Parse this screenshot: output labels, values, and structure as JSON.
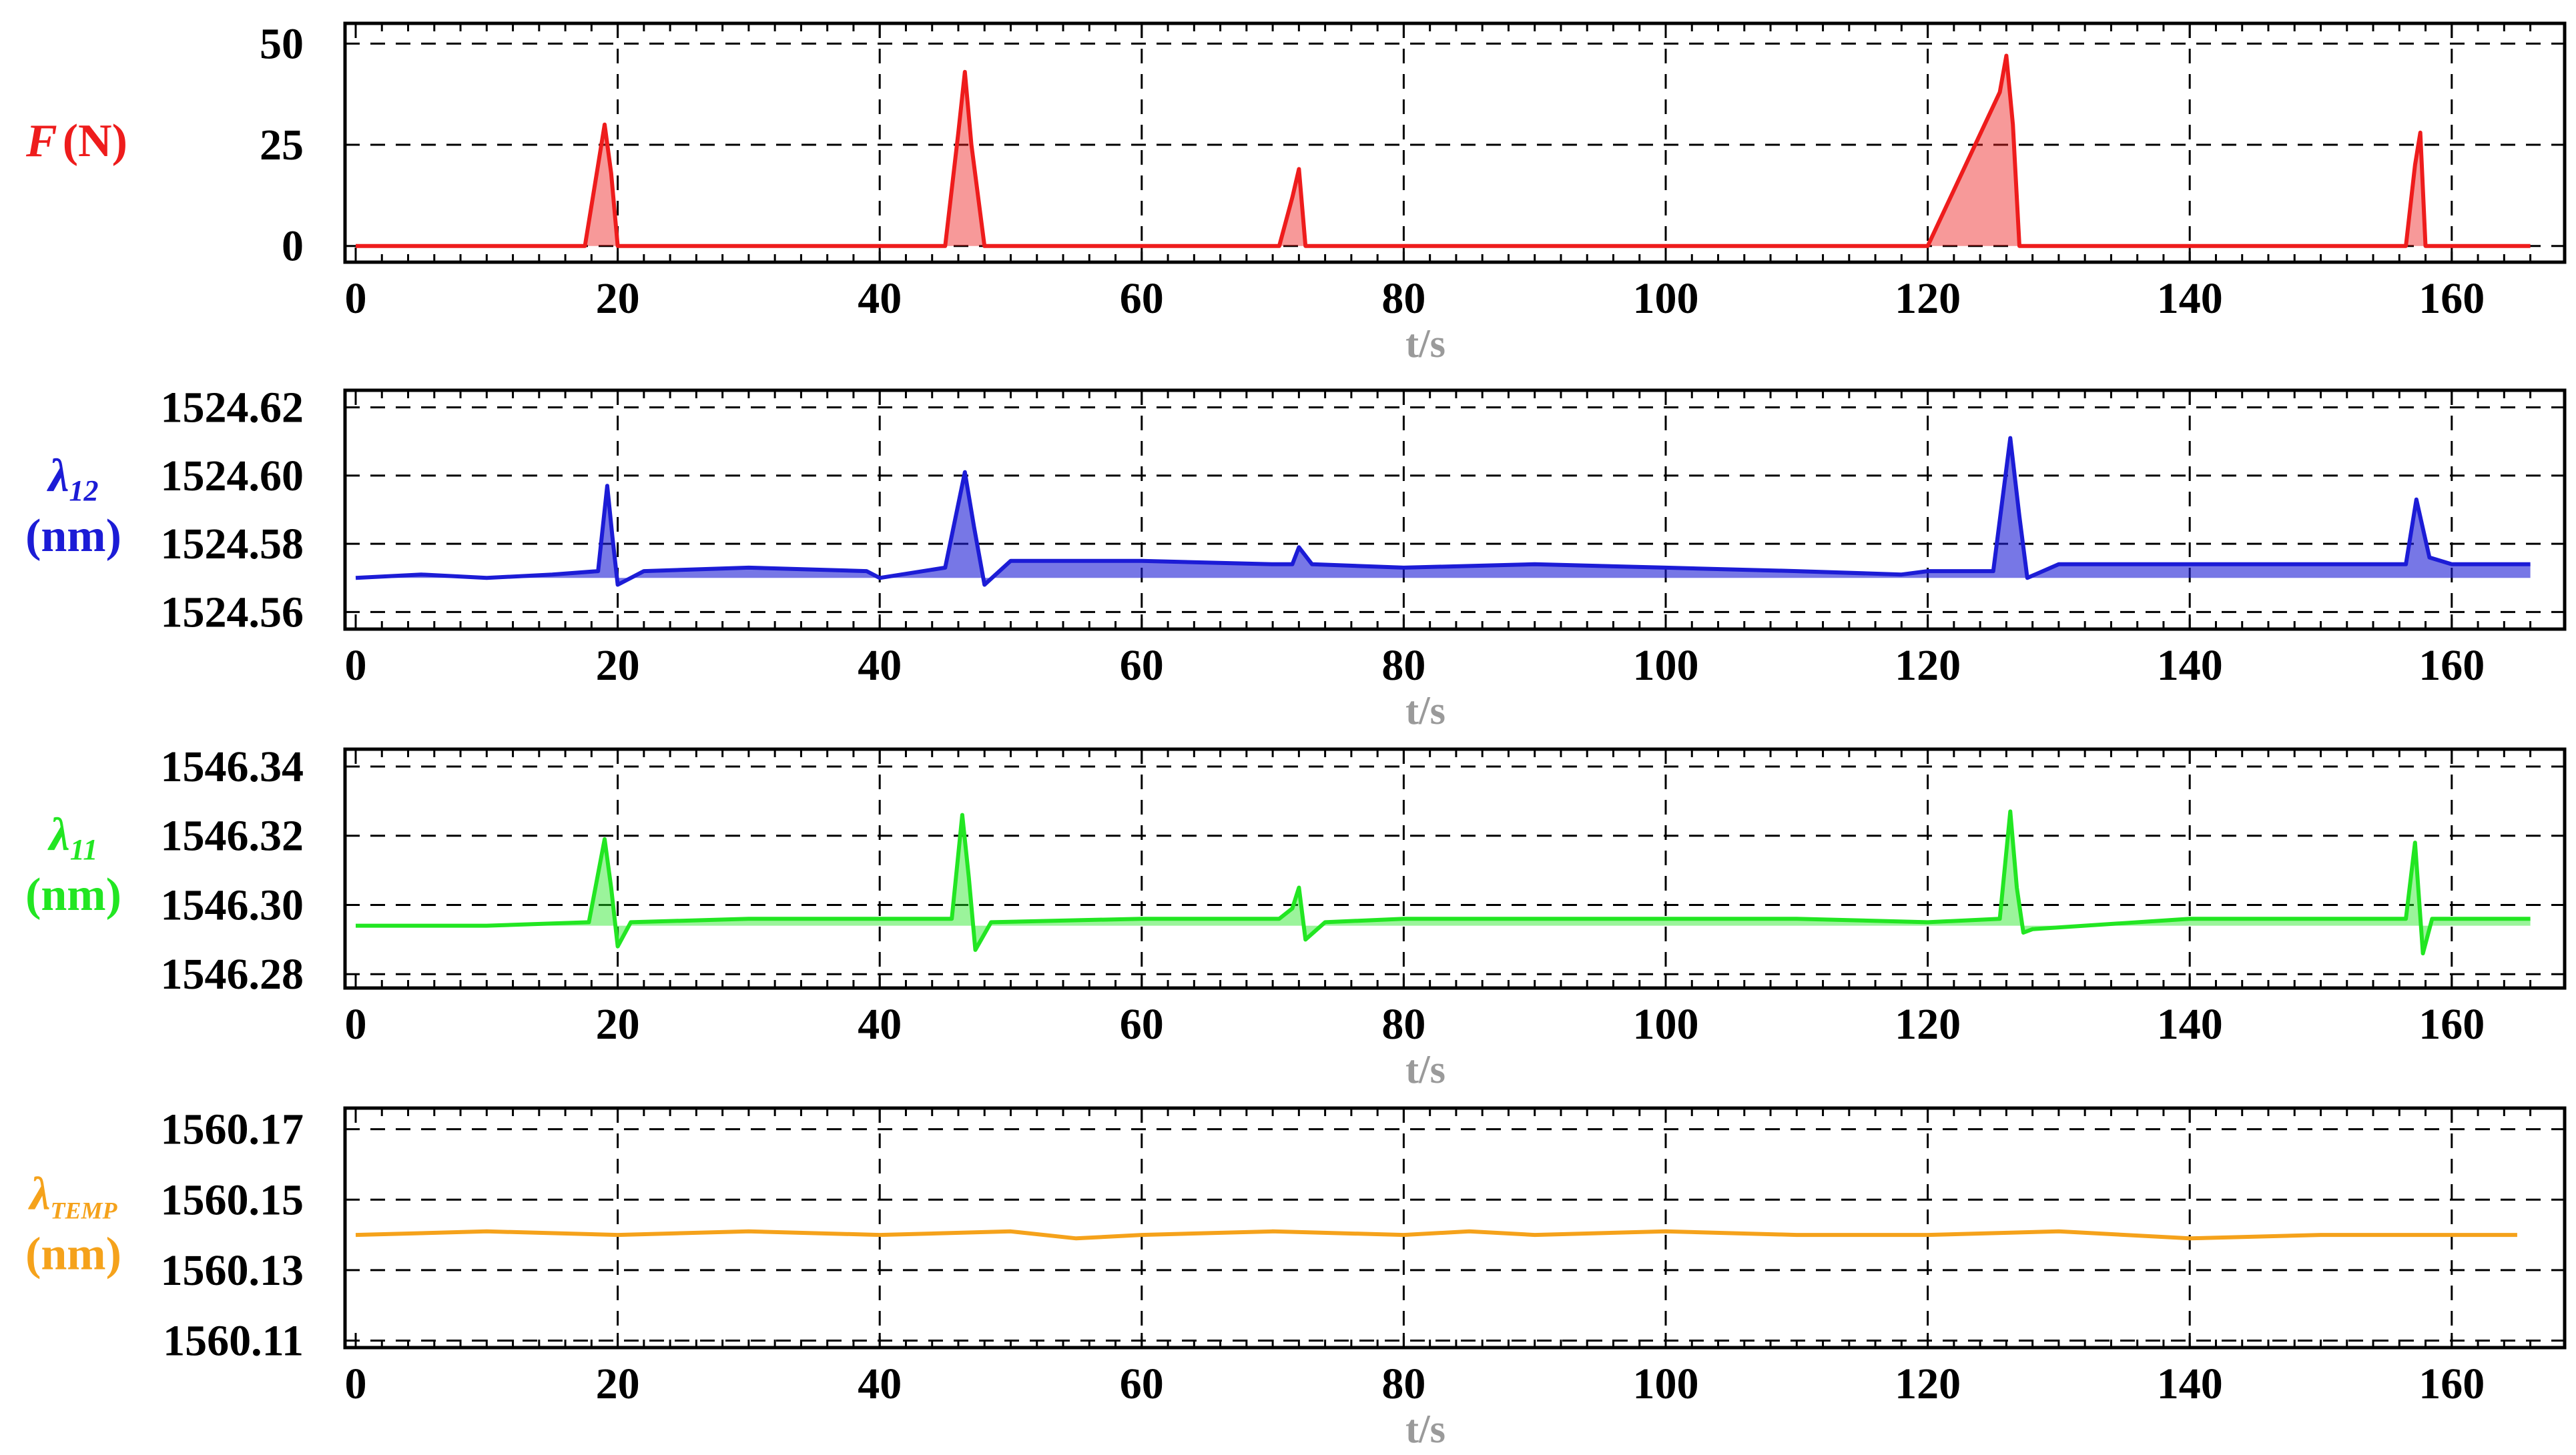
{
  "chart_data": [
    {
      "type": "area",
      "ylabel_main": "F",
      "ylabel_unit": "(N)",
      "ylabel_sub": "",
      "color": "#ee1c1c",
      "fill_opacity": 0.45,
      "xlabel": "t/s",
      "xlim": [
        0,
        166
      ],
      "ylim": [
        -4,
        55
      ],
      "xticks": [
        "0",
        "20",
        "40",
        "60",
        "80",
        "100",
        "120",
        "140",
        "160"
      ],
      "yticks": [
        {
          "v": 0,
          "label": "0"
        },
        {
          "v": 25,
          "label": "25"
        },
        {
          "v": 50,
          "label": "50"
        }
      ],
      "grid": true,
      "series": [
        {
          "x": [
            0,
            10,
            17.5,
            18.5,
            19,
            19.5,
            20,
            30,
            45,
            46,
            46.5,
            47,
            48,
            60,
            70.5,
            71.5,
            72,
            72.5,
            80,
            100,
            120,
            125.5,
            126,
            126.5,
            127,
            140,
            156.5,
            157.2,
            157.6,
            158,
            166
          ],
          "y": [
            0,
            0,
            0,
            20,
            30,
            18,
            0,
            0,
            0,
            28,
            43,
            25,
            0,
            0,
            0,
            12,
            19,
            0,
            0,
            0,
            0,
            38,
            47,
            30,
            0,
            0,
            0,
            20,
            28,
            0,
            0
          ]
        }
      ]
    },
    {
      "type": "area",
      "ylabel_main": "λ",
      "ylabel_sub": "12",
      "ylabel_unit": "(nm)",
      "color": "#1c1cd6",
      "fill_opacity": 0.6,
      "xlabel": "t/s",
      "xlim": [
        0,
        166
      ],
      "ylim": [
        1524.555,
        1524.625
      ],
      "xticks": [
        "0",
        "20",
        "40",
        "60",
        "80",
        "100",
        "120",
        "140",
        "160"
      ],
      "yticks": [
        {
          "v": 1524.56,
          "label": "1524.56"
        },
        {
          "v": 1524.58,
          "label": "1524.58"
        },
        {
          "v": 1524.6,
          "label": "1524.60"
        },
        {
          "v": 1524.62,
          "label": "1524.62"
        }
      ],
      "grid": true,
      "series": [
        {
          "x": [
            0,
            5,
            10,
            15,
            18.5,
            19.2,
            19.6,
            20,
            22,
            30,
            39,
            40,
            45,
            46.5,
            47.2,
            48,
            50,
            60,
            70,
            71.5,
            72,
            73,
            80,
            90,
            100,
            110,
            118,
            120,
            125,
            126.3,
            127,
            127.6,
            130,
            140,
            150,
            156.5,
            157.3,
            158.3,
            160,
            166
          ],
          "y": [
            1524.57,
            1524.571,
            1524.57,
            1524.571,
            1524.572,
            1524.597,
            1524.582,
            1524.568,
            1524.572,
            1524.573,
            1524.572,
            1524.57,
            1524.573,
            1524.601,
            1524.585,
            1524.568,
            1524.575,
            1524.575,
            1524.574,
            1524.574,
            1524.579,
            1524.574,
            1524.573,
            1524.574,
            1524.573,
            1524.572,
            1524.571,
            1524.572,
            1524.572,
            1524.611,
            1524.588,
            1524.57,
            1524.574,
            1524.574,
            1524.574,
            1524.574,
            1524.593,
            1524.576,
            1524.574,
            1524.574
          ]
        }
      ]
    },
    {
      "type": "area",
      "ylabel_main": "λ",
      "ylabel_sub": "11",
      "ylabel_unit": "(nm)",
      "color": "#22e622",
      "fill_opacity": 0.45,
      "xlabel": "t/s",
      "xlim": [
        0,
        166
      ],
      "ylim": [
        1546.276,
        1546.345
      ],
      "xticks": [
        "0",
        "20",
        "40",
        "60",
        "80",
        "100",
        "120",
        "140",
        "160"
      ],
      "yticks": [
        {
          "v": 1546.28,
          "label": "1546.28"
        },
        {
          "v": 1546.3,
          "label": "1546.30"
        },
        {
          "v": 1546.32,
          "label": "1546.32"
        },
        {
          "v": 1546.34,
          "label": "1546.34"
        }
      ],
      "grid": true,
      "series": [
        {
          "x": [
            0,
            5,
            10,
            17.8,
            19,
            19.5,
            20,
            21,
            30,
            40,
            45.5,
            46.3,
            46.8,
            47.3,
            48.5,
            60,
            70.5,
            71.5,
            72,
            72.5,
            74,
            80,
            90,
            100,
            110,
            120,
            125.5,
            126.3,
            126.8,
            127.3,
            128,
            140,
            150,
            156.5,
            157.2,
            157.8,
            158.5,
            160,
            166
          ],
          "y": [
            1546.294,
            1546.294,
            1546.294,
            1546.295,
            1546.319,
            1546.305,
            1546.288,
            1546.295,
            1546.296,
            1546.296,
            1546.296,
            1546.326,
            1546.308,
            1546.287,
            1546.295,
            1546.296,
            1546.296,
            1546.299,
            1546.305,
            1546.29,
            1546.295,
            1546.296,
            1546.296,
            1546.296,
            1546.296,
            1546.295,
            1546.296,
            1546.327,
            1546.305,
            1546.292,
            1546.293,
            1546.296,
            1546.296,
            1546.296,
            1546.318,
            1546.286,
            1546.296,
            1546.296,
            1546.296
          ]
        }
      ]
    },
    {
      "type": "line",
      "ylabel_main": "λ",
      "ylabel_sub": "TEMP",
      "ylabel_unit": "(nm)",
      "color": "#f5a21b",
      "fill_opacity": 0,
      "xlabel": "t/s",
      "xlim": [
        0,
        166
      ],
      "ylim": [
        1560.108,
        1560.176
      ],
      "xticks": [
        "0",
        "20",
        "40",
        "60",
        "80",
        "100",
        "120",
        "140",
        "160"
      ],
      "yticks": [
        {
          "v": 1560.11,
          "label": "1560.11"
        },
        {
          "v": 1560.13,
          "label": "1560.13"
        },
        {
          "v": 1560.15,
          "label": "1560.15"
        },
        {
          "v": 1560.17,
          "label": "1560.17"
        }
      ],
      "grid": true,
      "series": [
        {
          "x": [
            0,
            10,
            20,
            30,
            40,
            50,
            55,
            60,
            70,
            80,
            85,
            90,
            100,
            110,
            120,
            130,
            140,
            150,
            160,
            165
          ],
          "y": [
            1560.14,
            1560.141,
            1560.14,
            1560.141,
            1560.14,
            1560.141,
            1560.139,
            1560.14,
            1560.141,
            1560.14,
            1560.141,
            1560.14,
            1560.141,
            1560.14,
            1560.14,
            1560.141,
            1560.139,
            1560.14,
            1560.14,
            1560.14
          ]
        }
      ]
    }
  ]
}
